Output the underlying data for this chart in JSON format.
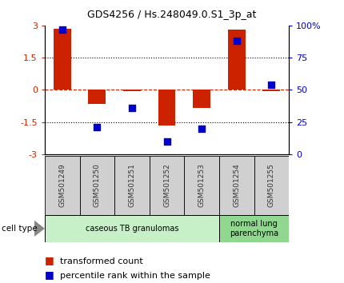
{
  "title": "GDS4256 / Hs.248049.0.S1_3p_at",
  "samples": [
    "GSM501249",
    "GSM501250",
    "GSM501251",
    "GSM501252",
    "GSM501253",
    "GSM501254",
    "GSM501255"
  ],
  "red_values": [
    2.85,
    -0.65,
    -0.05,
    -1.65,
    -0.85,
    2.8,
    -0.05
  ],
  "blue_values_pct": [
    97,
    21,
    36,
    10,
    20,
    88,
    54
  ],
  "ylim_left": [
    -3,
    3
  ],
  "ylim_right": [
    0,
    100
  ],
  "yticks_left": [
    -3,
    -1.5,
    0,
    1.5,
    3
  ],
  "yticks_right": [
    0,
    25,
    50,
    75,
    100
  ],
  "ytick_labels_left": [
    "-3",
    "-1.5",
    "0",
    "1.5",
    "3"
  ],
  "ytick_labels_right": [
    "0",
    "25",
    "50",
    "75",
    "100%"
  ],
  "hlines_dotted": [
    -1.5,
    1.5
  ],
  "hline_dashed_red": 0,
  "cell_types": [
    {
      "label": "caseous TB granulomas",
      "span": [
        0,
        5
      ],
      "color": "#c8f0c8"
    },
    {
      "label": "normal lung\nparenchyma",
      "span": [
        5,
        7
      ],
      "color": "#90d890"
    }
  ],
  "cell_type_label": "cell type",
  "legend_red": "transformed count",
  "legend_blue": "percentile rank within the sample",
  "red_color": "#cc2200",
  "blue_color": "#0000cc",
  "bar_width": 0.5,
  "blue_marker_size": 40,
  "background_color": "#ffffff",
  "plot_bg": "#ffffff",
  "sample_box_color": "#d0d0d0",
  "title_fontsize": 9,
  "axis_fontsize": 8,
  "label_fontsize": 7.5,
  "legend_fontsize": 8
}
